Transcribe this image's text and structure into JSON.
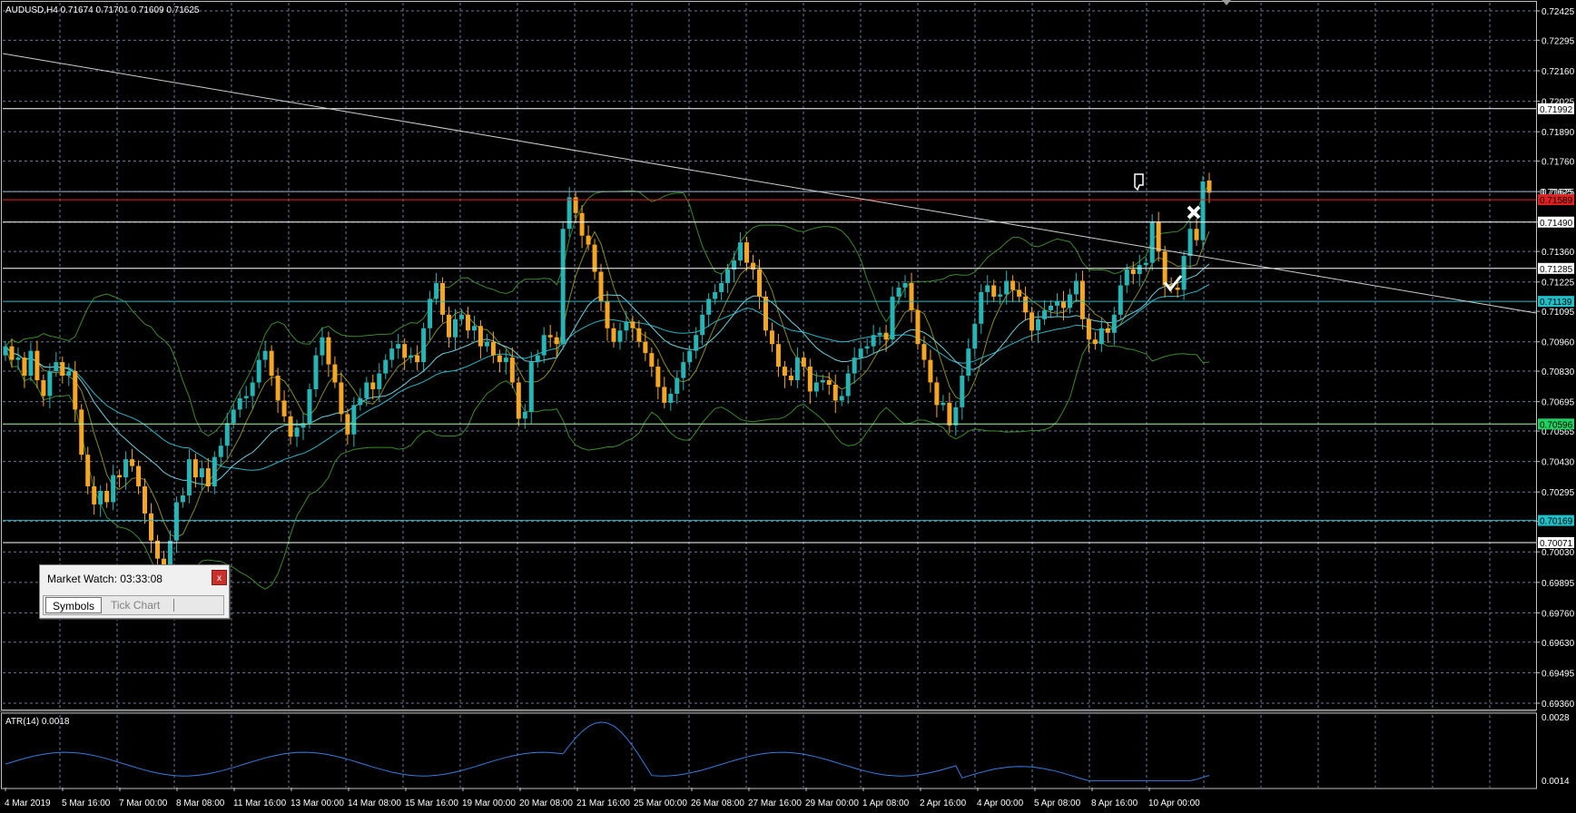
{
  "window": {
    "symbol_info": "AUDUSD,H4  0.71674 0.71701 0.71609 0.71625",
    "indicator_info": "ATR(14) 0.0018"
  },
  "price_scale": {
    "ticks": [
      "0.72425",
      "0.72295",
      "0.72160",
      "0.72025",
      "0.71890",
      "0.71760",
      "0.71625",
      "0.71490",
      "0.71360",
      "0.71225",
      "0.71095",
      "0.70960",
      "0.70830",
      "0.70695",
      "0.70565",
      "0.70430",
      "0.70295",
      "0.70165",
      "0.70030",
      "0.69895",
      "0.69760",
      "0.69630",
      "0.69495",
      "0.69360"
    ],
    "tick_min": 0.6936,
    "tick_max": 0.72425,
    "label_color": "#ffffff"
  },
  "atr_scale": {
    "ticks": [
      "0.0028",
      "0.0014"
    ],
    "max": 0.0028,
    "min": 0.0014
  },
  "time_axis": [
    "4 Mar 2019",
    "5 Mar 16:00",
    "7 Mar 00:00",
    "8 Mar 08:00",
    "11 Mar 16:00",
    "13 Mar 00:00",
    "14 Mar 08:00",
    "15 Mar 16:00",
    "19 Mar 00:00",
    "20 Mar 08:00",
    "21 Mar 16:00",
    "25 Mar 00:00",
    "26 Mar 08:00",
    "27 Mar 16:00",
    "29 Mar 00:00",
    "1 Apr 08:00",
    "2 Apr 16:00",
    "4 Apr 00:00",
    "5 Apr 08:00",
    "8 Apr 16:00",
    "10 Apr 00:00"
  ],
  "horizontal_lines": [
    {
      "price": 0.71992,
      "label": "0.71992",
      "color": "#ffffff",
      "label_bg": "#ffffff",
      "label_fg": "#000000"
    },
    {
      "price": 0.71625,
      "label": "0.71625",
      "color": "#9db2c8",
      "label_bg": "#ffffff",
      "label_fg": "#000000",
      "no_box": true
    },
    {
      "price": 0.71589,
      "label": "0.71589",
      "color": "#e02020",
      "label_bg": "#e02020",
      "label_fg": "#000000"
    },
    {
      "price": 0.7149,
      "label": "0.71490",
      "color": "#ffffff",
      "label_bg": "#ffffff",
      "label_fg": "#000000"
    },
    {
      "price": 0.71285,
      "label": "0.71285",
      "color": "#ffffff",
      "label_bg": "#ffffff",
      "label_fg": "#000000"
    },
    {
      "price": 0.71139,
      "label": "0.71139",
      "color": "#20c0c8",
      "label_bg": "#20c0c8",
      "label_fg": "#000000"
    },
    {
      "price": 0.70596,
      "label": "0.70596",
      "color": "#b0f0b0",
      "label_bg": "#20d060",
      "label_fg": "#000000"
    },
    {
      "price": 0.70169,
      "label": "0.70169",
      "color": "#20c0c8",
      "label_bg": "#20c0c8",
      "label_fg": "#000000"
    },
    {
      "price": 0.70071,
      "label": "0.70071",
      "color": "#ffffff",
      "label_bg": "#ffffff",
      "label_fg": "#000000"
    }
  ],
  "colors": {
    "bull": "#26b4b4",
    "bear": "#f5a623",
    "grid": "#6b7a99",
    "bollinger": "#3a8a2a",
    "bollinger_mid": "#8a8a20",
    "ma": "#29b6c6",
    "atr_line": "#3a7be0",
    "trendline": "#cfcfcf"
  },
  "market_watch": {
    "title": "Market Watch: 03:33:08",
    "close_label": "x",
    "tabs": [
      "Symbols",
      "Tick Chart"
    ]
  },
  "chart_data": {
    "type": "candlestick",
    "symbol": "AUDUSD",
    "timeframe": "H4",
    "last_ohlc": {
      "open": 0.71674,
      "high": 0.71701,
      "low": 0.71609,
      "close": 0.71625
    },
    "ylim": [
      0.6936,
      0.72425
    ],
    "closes": [
      0.7094,
      0.7088,
      0.7089,
      0.7081,
      0.7092,
      0.7079,
      0.7072,
      0.7083,
      0.7087,
      0.7081,
      0.7083,
      0.7066,
      0.7046,
      0.7032,
      0.7024,
      0.703,
      0.7025,
      0.7037,
      0.7036,
      0.7044,
      0.7041,
      0.7032,
      0.702,
      0.7008,
      0.7,
      0.6996,
      0.7008,
      0.7025,
      0.7028,
      0.7044,
      0.7036,
      0.704,
      0.7032,
      0.7045,
      0.705,
      0.706,
      0.7066,
      0.7071,
      0.7072,
      0.7078,
      0.7088,
      0.7092,
      0.7081,
      0.707,
      0.7063,
      0.7054,
      0.7058,
      0.706,
      0.7075,
      0.709,
      0.7098,
      0.7086,
      0.7078,
      0.7064,
      0.7055,
      0.7068,
      0.7071,
      0.7078,
      0.7075,
      0.7082,
      0.7088,
      0.7093,
      0.7095,
      0.7089,
      0.709,
      0.7087,
      0.7102,
      0.7115,
      0.7122,
      0.7108,
      0.7098,
      0.7106,
      0.7108,
      0.7101,
      0.7103,
      0.7094,
      0.7096,
      0.709,
      0.7087,
      0.7089,
      0.7078,
      0.7062,
      0.7065,
      0.7087,
      0.709,
      0.7099,
      0.7098,
      0.7095,
      0.7146,
      0.716,
      0.7153,
      0.7143,
      0.7139,
      0.7127,
      0.7114,
      0.7102,
      0.7096,
      0.7101,
      0.7105,
      0.7102,
      0.7096,
      0.7091,
      0.7085,
      0.7076,
      0.7069,
      0.7073,
      0.708,
      0.7087,
      0.7092,
      0.7099,
      0.7108,
      0.7115,
      0.7118,
      0.7122,
      0.7128,
      0.7132,
      0.714,
      0.7131,
      0.7128,
      0.7116,
      0.7101,
      0.7095,
      0.7085,
      0.7081,
      0.7079,
      0.7089,
      0.7085,
      0.7074,
      0.7078,
      0.7079,
      0.7077,
      0.707,
      0.7072,
      0.7082,
      0.7089,
      0.7093,
      0.7094,
      0.7099,
      0.71,
      0.7097,
      0.7116,
      0.712,
      0.7122,
      0.711,
      0.7095,
      0.7088,
      0.7078,
      0.7068,
      0.7069,
      0.7059,
      0.7067,
      0.7081,
      0.7093,
      0.7104,
      0.7118,
      0.7121,
      0.7116,
      0.7117,
      0.7123,
      0.7119,
      0.7116,
      0.7109,
      0.7101,
      0.7106,
      0.711,
      0.7112,
      0.7114,
      0.7111,
      0.7117,
      0.7123,
      0.7106,
      0.7097,
      0.7095,
      0.7102,
      0.71,
      0.7108,
      0.7121,
      0.7128,
      0.7126,
      0.713,
      0.7131,
      0.7149,
      0.7136,
      0.7121,
      0.712,
      0.7119,
      0.7134,
      0.7146,
      0.7141,
      0.7167,
      0.7162
    ]
  }
}
